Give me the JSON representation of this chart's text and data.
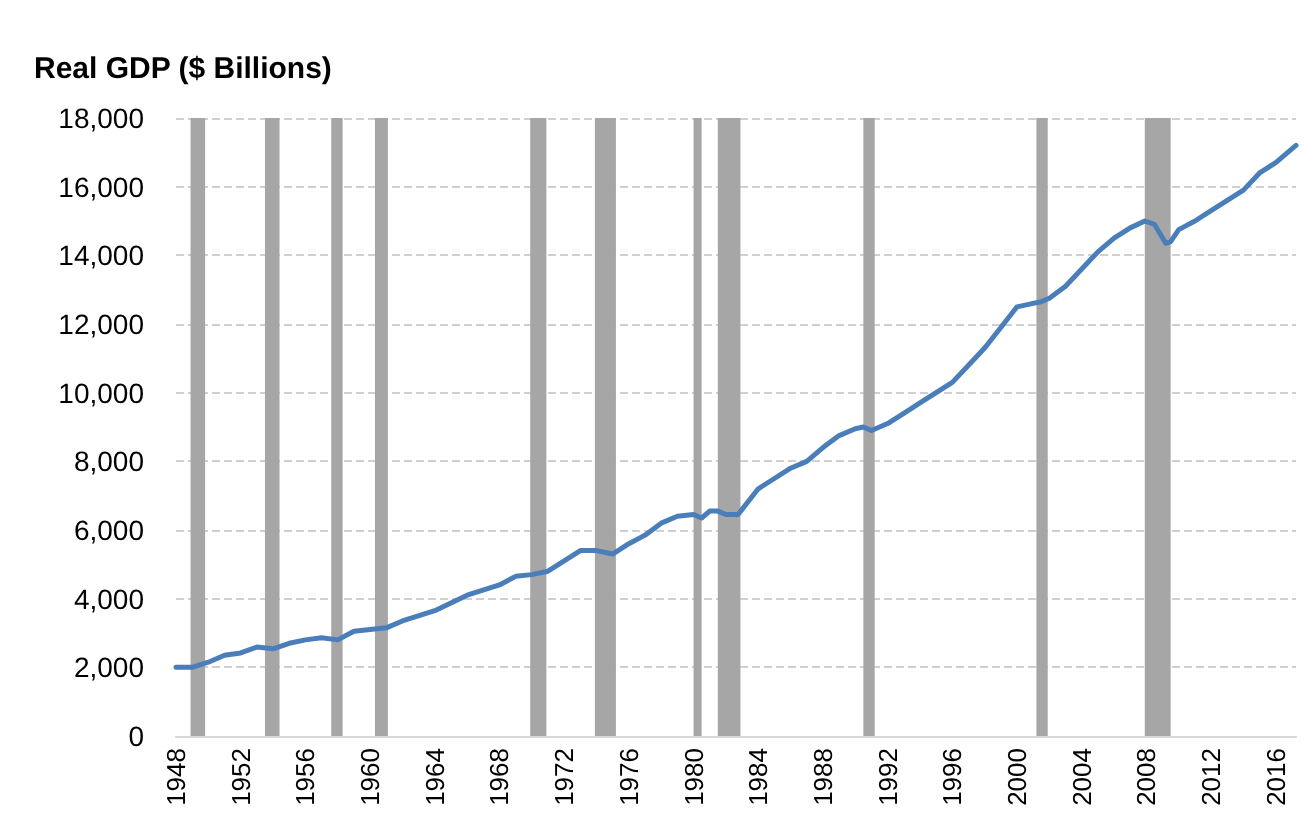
{
  "chart_data": {
    "type": "line",
    "title": "Real GDP ($ Billions)",
    "x": [
      1948,
      1949,
      1950,
      1951,
      1952,
      1953,
      1954,
      1955,
      1956,
      1957,
      1958,
      1959,
      1960,
      1961,
      1962,
      1964,
      1966,
      1968,
      1969,
      1970,
      1971,
      1972,
      1973,
      1974,
      1975,
      1976,
      1977,
      1978,
      1979,
      1980,
      1980.5,
      1981,
      1981.5,
      1982,
      1982.75,
      1983,
      1984,
      1985,
      1986,
      1987,
      1988,
      1989,
      1990,
      1990.5,
      1991,
      1992,
      1993,
      1994,
      1995,
      1996,
      1997,
      1998,
      1999,
      2000,
      2001,
      2001.5,
      2002,
      2003,
      2004,
      2005,
      2006,
      2007,
      2007.9,
      2008.5,
      2009.2,
      2009.5,
      2010,
      2011,
      2012,
      2013,
      2014,
      2015,
      2016,
      2017.25
    ],
    "series": [
      {
        "color": "#4a7ebb",
        "values": [
          2000,
          2000,
          2150,
          2350,
          2420,
          2590,
          2540,
          2700,
          2800,
          2860,
          2800,
          3050,
          3100,
          3150,
          3350,
          3650,
          4100,
          4400,
          4650,
          4700,
          4800,
          5100,
          5400,
          5400,
          5300,
          5600,
          5850,
          6200,
          6400,
          6450,
          6350,
          6550,
          6550,
          6450,
          6450,
          6600,
          7200,
          7500,
          7800,
          8000,
          8400,
          8750,
          8950,
          9000,
          8900,
          9100,
          9400,
          9700,
          10000,
          10300,
          10800,
          11300,
          11900,
          12500,
          12600,
          12650,
          12750,
          13100,
          13600,
          14100,
          14500,
          14800,
          15000,
          14900,
          14350,
          14400,
          14750,
          15000,
          15300,
          15600,
          15900,
          16400,
          16700,
          17200
        ]
      }
    ],
    "xlim": [
      1948,
      2017.25
    ],
    "xticks": [
      1948,
      1952,
      1956,
      1960,
      1964,
      1968,
      1972,
      1976,
      1980,
      1984,
      1988,
      1992,
      1996,
      2000,
      2004,
      2008,
      2012,
      2016
    ],
    "ylim": [
      0,
      18000
    ],
    "yticks": [
      {
        "value": 0,
        "label": "0"
      },
      {
        "value": 2000,
        "label": "2,000"
      },
      {
        "value": 4000,
        "label": "4,000"
      },
      {
        "value": 6000,
        "label": "6,000"
      },
      {
        "value": 8000,
        "label": "8,000"
      },
      {
        "value": 10000,
        "label": "10,000"
      },
      {
        "value": 12000,
        "label": "12,000"
      },
      {
        "value": 14000,
        "label": "14,000"
      },
      {
        "value": 16000,
        "label": "16,000"
      },
      {
        "value": 18000,
        "label": "18,000"
      }
    ],
    "grid": "y",
    "marker": "none",
    "line_style": "solid",
    "bands": [
      {
        "axis": "x",
        "from": 1948.9,
        "to": 1949.8,
        "color": "#a6a6a6"
      },
      {
        "axis": "x",
        "from": 1953.5,
        "to": 1954.4,
        "color": "#a6a6a6"
      },
      {
        "axis": "x",
        "from": 1957.6,
        "to": 1958.3,
        "color": "#a6a6a6"
      },
      {
        "axis": "x",
        "from": 1960.3,
        "to": 1961.1,
        "color": "#a6a6a6"
      },
      {
        "axis": "x",
        "from": 1969.9,
        "to": 1970.9,
        "color": "#a6a6a6"
      },
      {
        "axis": "x",
        "from": 1973.9,
        "to": 1975.2,
        "color": "#a6a6a6"
      },
      {
        "axis": "x",
        "from": 1980.0,
        "to": 1980.5,
        "color": "#a6a6a6"
      },
      {
        "axis": "x",
        "from": 1981.5,
        "to": 1982.9,
        "color": "#a6a6a6"
      },
      {
        "axis": "x",
        "from": 1990.5,
        "to": 1991.2,
        "color": "#a6a6a6"
      },
      {
        "axis": "x",
        "from": 2001.2,
        "to": 2001.9,
        "color": "#a6a6a6"
      },
      {
        "axis": "x",
        "from": 2007.9,
        "to": 2009.5,
        "color": "#a6a6a6"
      }
    ]
  }
}
